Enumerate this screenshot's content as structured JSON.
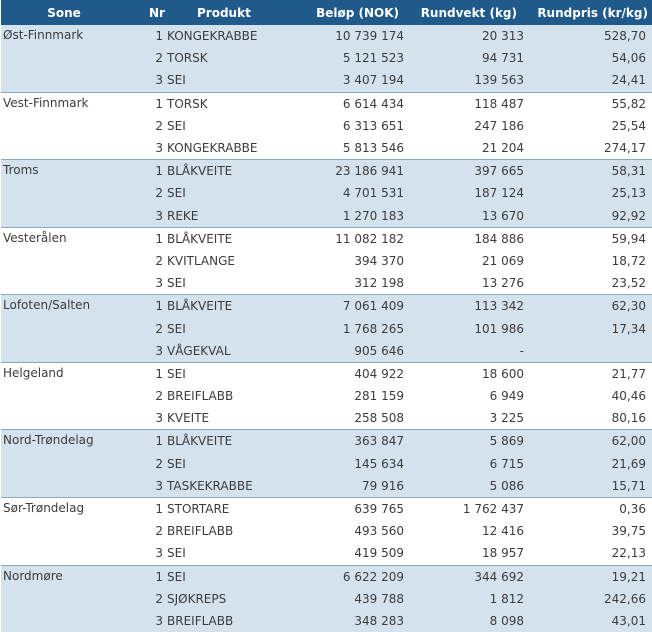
{
  "table": {
    "headers": {
      "sone": "Sone",
      "nr": "Nr",
      "produkt": "Produkt",
      "belop": "Beløp (NOK)",
      "rundvekt": "Rundvekt (kg)",
      "rundpris": "Rundpris (kr/kg)"
    },
    "groups": [
      {
        "sone": "Øst-Finnmark",
        "rows": [
          {
            "nr": "1",
            "produkt": "KONGEKRABBE",
            "belop": "10 739 174",
            "rundvekt": "20 313",
            "rundpris": "528,70"
          },
          {
            "nr": "2",
            "produkt": "TORSK",
            "belop": "5 121 523",
            "rundvekt": "94 731",
            "rundpris": "54,06"
          },
          {
            "nr": "3",
            "produkt": "SEI",
            "belop": "3 407 194",
            "rundvekt": "139 563",
            "rundpris": "24,41"
          }
        ]
      },
      {
        "sone": "Vest-Finnmark",
        "rows": [
          {
            "nr": "1",
            "produkt": "TORSK",
            "belop": "6 614 434",
            "rundvekt": "118 487",
            "rundpris": "55,82"
          },
          {
            "nr": "2",
            "produkt": "SEI",
            "belop": "6 313 651",
            "rundvekt": "247 186",
            "rundpris": "25,54"
          },
          {
            "nr": "3",
            "produkt": "KONGEKRABBE",
            "belop": "5 813 546",
            "rundvekt": "21 204",
            "rundpris": "274,17"
          }
        ]
      },
      {
        "sone": "Troms",
        "rows": [
          {
            "nr": "1",
            "produkt": "BLÅKVEITE",
            "belop": "23 186 941",
            "rundvekt": "397 665",
            "rundpris": "58,31"
          },
          {
            "nr": "2",
            "produkt": "SEI",
            "belop": "4 701 531",
            "rundvekt": "187 124",
            "rundpris": "25,13"
          },
          {
            "nr": "3",
            "produkt": "REKE",
            "belop": "1 270 183",
            "rundvekt": "13 670",
            "rundpris": "92,92"
          }
        ]
      },
      {
        "sone": "Vesterålen",
        "rows": [
          {
            "nr": "1",
            "produkt": "BLÅKVEITE",
            "belop": "11 082 182",
            "rundvekt": "184 886",
            "rundpris": "59,94"
          },
          {
            "nr": "2",
            "produkt": "KVITLANGE",
            "belop": "394 370",
            "rundvekt": "21 069",
            "rundpris": "18,72"
          },
          {
            "nr": "3",
            "produkt": "SEI",
            "belop": "312 198",
            "rundvekt": "13 276",
            "rundpris": "23,52"
          }
        ]
      },
      {
        "sone": "Lofoten/Salten",
        "rows": [
          {
            "nr": "1",
            "produkt": "BLÅKVEITE",
            "belop": "7 061 409",
            "rundvekt": "113 342",
            "rundpris": "62,30"
          },
          {
            "nr": "2",
            "produkt": "SEI",
            "belop": "1 768 265",
            "rundvekt": "101 986",
            "rundpris": "17,34"
          },
          {
            "nr": "3",
            "produkt": "VÅGEKVAL",
            "belop": "905 646",
            "rundvekt": "-",
            "rundpris": ""
          }
        ]
      },
      {
        "sone": "Helgeland",
        "rows": [
          {
            "nr": "1",
            "produkt": "SEI",
            "belop": "404 922",
            "rundvekt": "18 600",
            "rundpris": "21,77"
          },
          {
            "nr": "2",
            "produkt": "BREIFLABB",
            "belop": "281 159",
            "rundvekt": "6 949",
            "rundpris": "40,46"
          },
          {
            "nr": "3",
            "produkt": "KVEITE",
            "belop": "258 508",
            "rundvekt": "3 225",
            "rundpris": "80,16"
          }
        ]
      },
      {
        "sone": "Nord-Trøndelag",
        "rows": [
          {
            "nr": "1",
            "produkt": "BLÅKVEITE",
            "belop": "363 847",
            "rundvekt": "5 869",
            "rundpris": "62,00"
          },
          {
            "nr": "2",
            "produkt": "SEI",
            "belop": "145 634",
            "rundvekt": "6 715",
            "rundpris": "21,69"
          },
          {
            "nr": "3",
            "produkt": "TASKEKRABBE",
            "belop": "79 916",
            "rundvekt": "5 086",
            "rundpris": "15,71"
          }
        ]
      },
      {
        "sone": "Sør-Trøndelag",
        "rows": [
          {
            "nr": "1",
            "produkt": "STORTARE",
            "belop": "639 765",
            "rundvekt": "1 762 437",
            "rundpris": "0,36"
          },
          {
            "nr": "2",
            "produkt": "BREIFLABB",
            "belop": "493 560",
            "rundvekt": "12 416",
            "rundpris": "39,75"
          },
          {
            "nr": "3",
            "produkt": "SEI",
            "belop": "419 509",
            "rundvekt": "18 957",
            "rundpris": "22,13"
          }
        ]
      },
      {
        "sone": "Nordmøre",
        "rows": [
          {
            "nr": "1",
            "produkt": "SEI",
            "belop": "6 622 209",
            "rundvekt": "344 692",
            "rundpris": "19,21"
          },
          {
            "nr": "2",
            "produkt": "SJØKREPS",
            "belop": "439 788",
            "rundvekt": "1 812",
            "rundpris": "242,66"
          },
          {
            "nr": "3",
            "produkt": "BREIFLABB",
            "belop": "348 283",
            "rundvekt": "8 098",
            "rundpris": "43,01"
          }
        ]
      }
    ]
  }
}
